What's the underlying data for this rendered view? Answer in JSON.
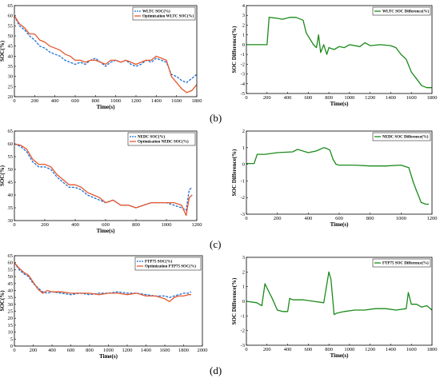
{
  "colors": {
    "baseline": "#1f6fd1",
    "optimization": "#e4572e",
    "difference": "#1a8a1a",
    "axis": "#000000"
  },
  "captions": [
    "(b)",
    "(c)",
    "(d)"
  ],
  "chart_data": [
    {
      "type": "line",
      "xlabel": "Time(s)",
      "ylabel": "SOC(%)",
      "xlim": [
        0,
        1800
      ],
      "ylim": [
        20,
        65
      ],
      "xticks": [
        "0",
        "200",
        "400",
        "600",
        "800",
        "1000",
        "1200",
        "1400",
        "1600",
        "1800"
      ],
      "yticks": [
        "20",
        "25",
        "30",
        "35",
        "40",
        "45",
        "50",
        "55",
        "60",
        "65"
      ],
      "legend_position": "top-right",
      "series": [
        {
          "name": "WLTC SOC(%)",
          "style": "dashed",
          "color": "#1f6fd1",
          "x": [
            0,
            50,
            100,
            150,
            200,
            250,
            300,
            350,
            400,
            450,
            500,
            550,
            600,
            650,
            700,
            750,
            800,
            850,
            900,
            950,
            1000,
            1050,
            1100,
            1150,
            1200,
            1250,
            1300,
            1350,
            1400,
            1450,
            1500,
            1550,
            1600,
            1650,
            1700,
            1750,
            1800
          ],
          "y": [
            60,
            55,
            53,
            50,
            48,
            45,
            44,
            42,
            41,
            40,
            38,
            37,
            36,
            37,
            36,
            38,
            39,
            37,
            35,
            37,
            38,
            37,
            38,
            36,
            35,
            36,
            38,
            37,
            39,
            38,
            37,
            31,
            30,
            28,
            27,
            29,
            31
          ]
        },
        {
          "name": "Optimization WLTC SOC(%)",
          "style": "solid",
          "color": "#e4572e",
          "x": [
            0,
            50,
            100,
            150,
            200,
            250,
            300,
            350,
            400,
            450,
            500,
            550,
            600,
            650,
            700,
            750,
            800,
            850,
            900,
            950,
            1000,
            1050,
            1100,
            1150,
            1200,
            1250,
            1300,
            1350,
            1400,
            1450,
            1500,
            1550,
            1600,
            1650,
            1700,
            1750,
            1800
          ],
          "y": [
            60,
            56,
            54,
            51,
            51,
            48,
            47,
            45,
            44,
            43,
            41,
            40,
            38,
            38,
            37,
            38,
            38,
            37,
            36,
            38,
            38,
            37,
            38,
            37,
            36,
            37,
            38,
            38,
            40,
            39,
            38,
            30,
            27,
            24,
            22,
            23,
            26
          ]
        }
      ]
    },
    {
      "type": "line",
      "xlabel": "Time(s)",
      "ylabel": "SOC Difference(%)",
      "xlim": [
        0,
        1800
      ],
      "ylim": [
        -5,
        4
      ],
      "xticks": [
        "0",
        "200",
        "400",
        "600",
        "800",
        "1000",
        "1200",
        "1400",
        "1600",
        "1800"
      ],
      "yticks": [
        "-5",
        "-4",
        "-3",
        "-2",
        "-1",
        "0",
        "1",
        "2",
        "3",
        "4"
      ],
      "legend_position": "top-right",
      "series": [
        {
          "name": "WLTC SOC Difference(%)",
          "style": "solid",
          "color": "#1a8a1a",
          "x": [
            0,
            200,
            220,
            300,
            350,
            420,
            480,
            550,
            580,
            650,
            680,
            700,
            720,
            750,
            780,
            800,
            850,
            900,
            950,
            1000,
            1100,
            1150,
            1200,
            1300,
            1400,
            1450,
            1500,
            1550,
            1600,
            1650,
            1700,
            1750,
            1800
          ],
          "y": [
            0,
            0,
            2.8,
            2.7,
            2.6,
            2.8,
            2.8,
            2.5,
            1.2,
            0,
            -0.3,
            1,
            -0.8,
            0,
            -1,
            -0.3,
            -0.5,
            -0.2,
            -0.3,
            0,
            -0.2,
            0.2,
            -0.1,
            0,
            -0.1,
            -0.3,
            -1,
            -1.5,
            -2.8,
            -3.5,
            -4.2,
            -4.4,
            -4.4
          ]
        }
      ]
    },
    {
      "type": "line",
      "xlabel": "Time(s)",
      "ylabel": "SOC(%)",
      "xlim": [
        0,
        1200
      ],
      "ylim": [
        30,
        65
      ],
      "xticks": [
        "0",
        "200",
        "400",
        "600",
        "800",
        "1000",
        "1200"
      ],
      "yticks": [
        "30",
        "35",
        "40",
        "45",
        "50",
        "55",
        "60",
        "65"
      ],
      "legend_position": "top-right",
      "series": [
        {
          "name": "NEDC SOC(%)",
          "style": "dashed",
          "color": "#1f6fd1",
          "x": [
            0,
            40,
            80,
            120,
            160,
            200,
            240,
            280,
            320,
            360,
            400,
            440,
            480,
            520,
            560,
            600,
            650,
            700,
            750,
            800,
            850,
            900,
            950,
            1000,
            1050,
            1100,
            1130,
            1150,
            1170
          ],
          "y": [
            60,
            59,
            57,
            53,
            51,
            51,
            50,
            47,
            45,
            43,
            43,
            42,
            40,
            39,
            38,
            37,
            38,
            36,
            36,
            35,
            36,
            37,
            37,
            37,
            36,
            35,
            34,
            42,
            43
          ]
        },
        {
          "name": "Optimization NEDC SOC(%)",
          "style": "solid",
          "color": "#e4572e",
          "x": [
            0,
            40,
            80,
            120,
            160,
            200,
            240,
            280,
            320,
            360,
            400,
            440,
            480,
            520,
            560,
            600,
            650,
            700,
            750,
            800,
            850,
            900,
            950,
            1000,
            1050,
            1100,
            1130,
            1150,
            1170
          ],
          "y": [
            60,
            59.5,
            58,
            54,
            52,
            52,
            51,
            48,
            46,
            44,
            44,
            43,
            41,
            40,
            39,
            37,
            38,
            36,
            36,
            35,
            36,
            37,
            37,
            37,
            37,
            36,
            32,
            39,
            40
          ]
        }
      ]
    },
    {
      "type": "line",
      "xlabel": "Time(s)",
      "ylabel": "SOC Difference(%)",
      "xlim": [
        0,
        1200
      ],
      "ylim": [
        -3,
        2
      ],
      "xticks": [
        "0",
        "200",
        "400",
        "600",
        "800",
        "1000",
        "1200"
      ],
      "yticks": [
        "-3",
        "-2",
        "-1",
        "0",
        "1",
        "2"
      ],
      "legend_position": "top-right",
      "series": [
        {
          "name": "NEDC SOC Difference(%)",
          "style": "solid",
          "color": "#1a8a1a",
          "x": [
            0,
            50,
            70,
            120,
            200,
            300,
            330,
            400,
            450,
            500,
            520,
            540,
            560,
            580,
            600,
            700,
            800,
            900,
            1000,
            1050,
            1080,
            1100,
            1130,
            1160,
            1180
          ],
          "y": [
            0.05,
            0.05,
            0.6,
            0.6,
            0.7,
            0.75,
            0.9,
            0.7,
            0.8,
            1.0,
            0.95,
            0.85,
            0.3,
            0,
            -0.05,
            -0.05,
            -0.1,
            -0.1,
            -0.05,
            -0.2,
            -1.1,
            -1.6,
            -2.3,
            -2.4,
            -2.4
          ]
        }
      ]
    },
    {
      "type": "line",
      "xlabel": "Time(s)",
      "ylabel": "SOC(%)",
      "xlim": [
        0,
        2000
      ],
      "ylim": [
        0,
        65
      ],
      "xticks": [
        "0",
        "200",
        "400",
        "600",
        "800",
        "1000",
        "1200",
        "1400",
        "1600",
        "1800",
        "2000"
      ],
      "yticks": [
        "0",
        "5",
        "10",
        "15",
        "20",
        "25",
        "30",
        "35",
        "40",
        "45",
        "50",
        "55",
        "60",
        "65"
      ],
      "legend_position": "top-right",
      "series": [
        {
          "name": "FTP75 SOC(%)",
          "style": "dashed",
          "color": "#1f6fd1",
          "x": [
            0,
            50,
            100,
            150,
            200,
            250,
            300,
            350,
            400,
            500,
            600,
            700,
            800,
            900,
            1000,
            1100,
            1200,
            1300,
            1400,
            1500,
            1600,
            1650,
            1700,
            1750,
            1800,
            1850,
            1880
          ],
          "y": [
            60,
            55,
            52,
            50,
            45,
            42,
            39,
            38,
            39,
            38,
            37,
            38,
            37,
            38,
            38,
            39,
            38,
            38,
            37,
            36,
            36,
            35,
            36,
            37,
            38,
            38,
            39
          ]
        },
        {
          "name": "Optimization FTP75 SOC(%)",
          "style": "solid",
          "color": "#e4572e",
          "x": [
            0,
            50,
            100,
            150,
            200,
            250,
            300,
            350,
            400,
            500,
            600,
            700,
            800,
            900,
            1000,
            1100,
            1200,
            1300,
            1400,
            1500,
            1600,
            1650,
            1700,
            1750,
            1800,
            1850,
            1880
          ],
          "y": [
            60,
            56,
            53,
            51,
            46,
            41,
            38,
            40,
            39,
            39,
            38,
            38,
            38,
            37,
            38,
            38,
            37,
            38,
            36,
            36,
            34,
            32,
            35,
            36,
            36,
            37,
            37
          ]
        }
      ]
    },
    {
      "type": "line",
      "xlabel": "Time(s)",
      "ylabel": "SOC Difference(%)",
      "xlim": [
        0,
        1800
      ],
      "ylim": [
        -3,
        3
      ],
      "xticks": [
        "0",
        "200",
        "400",
        "600",
        "800",
        "1000",
        "1200",
        "1400",
        "1600",
        "1800"
      ],
      "yticks": [
        "-3",
        "-2",
        "-1",
        "0",
        "1",
        "2",
        "3"
      ],
      "legend_position": "top-right",
      "series": [
        {
          "name": "FTP75 SOC Difference(%)",
          "style": "solid",
          "color": "#1a8a1a",
          "x": [
            0,
            100,
            150,
            180,
            200,
            250,
            300,
            350,
            400,
            420,
            450,
            550,
            650,
            750,
            800,
            820,
            850,
            880,
            950,
            1050,
            1150,
            1250,
            1350,
            1450,
            1550,
            1570,
            1600,
            1650,
            1700,
            1750,
            1800
          ],
          "y": [
            0,
            -0.1,
            -0.3,
            1.2,
            0.9,
            0.2,
            -0.6,
            -0.7,
            -0.7,
            0.2,
            0.1,
            0.1,
            0,
            -0.1,
            2.0,
            1.5,
            -0.9,
            -0.8,
            -0.7,
            -0.6,
            -0.6,
            -0.5,
            -0.5,
            -0.6,
            -0.5,
            0.6,
            -0.2,
            -0.2,
            -0.4,
            -0.3,
            -0.6
          ]
        }
      ]
    }
  ]
}
